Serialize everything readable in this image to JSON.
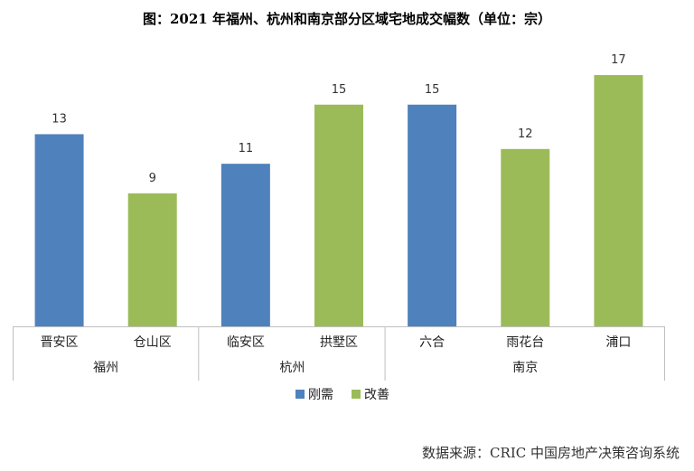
{
  "title": "图：2021 年福州、杭州和南京部分区域宅地成交幅数（单位：宗）",
  "source": "数据来源：CRIC 中国房地产决策咨询系统",
  "chart_data": {
    "type": "bar",
    "categories": [
      "晋安区",
      "仓山区",
      "临安区",
      "拱墅区",
      "六合",
      "雨花台",
      "浦口"
    ],
    "values": [
      13,
      9,
      11,
      15,
      15,
      12,
      17
    ],
    "point_series": [
      "刚需",
      "改善",
      "刚需",
      "改善",
      "刚需",
      "改善",
      "改善"
    ],
    "groups": [
      {
        "name": "福州",
        "count": 2
      },
      {
        "name": "杭州",
        "count": 2
      },
      {
        "name": "南京",
        "count": 3
      }
    ],
    "legend": [
      {
        "name": "刚需",
        "color": "#4f81bd"
      },
      {
        "name": "改善",
        "color": "#9bbb59"
      }
    ],
    "legend_position": "bottom",
    "ylim": [
      0,
      17.5
    ],
    "grid": false,
    "data_labels": true
  }
}
